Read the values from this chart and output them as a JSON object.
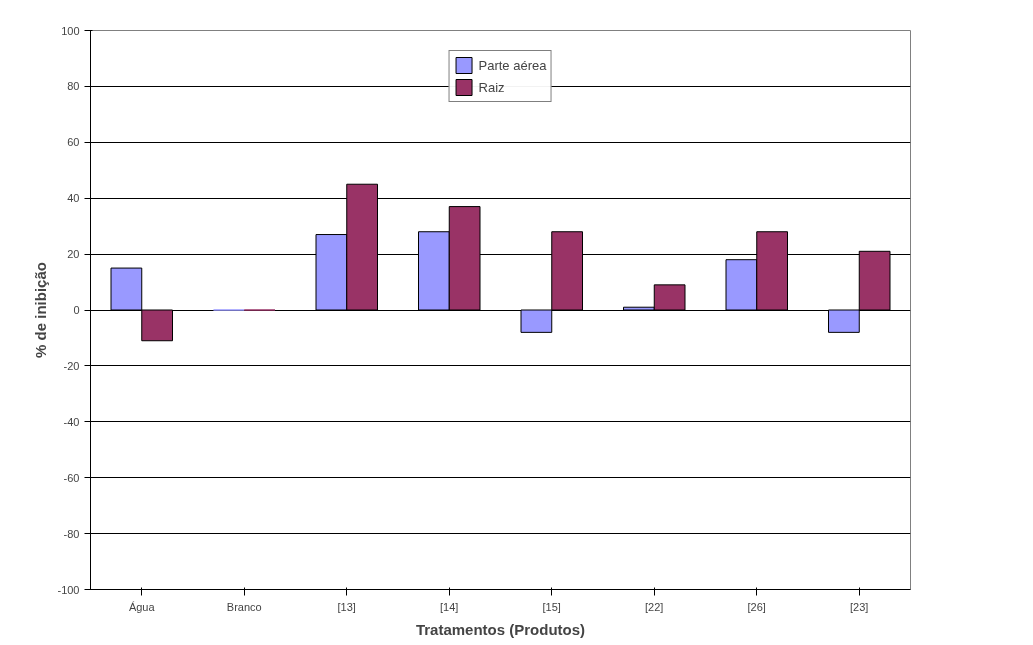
{
  "chart_data": {
    "type": "bar",
    "xlabel": "Tratamentos (Produtos)",
    "ylabel": "% de inibição",
    "categories": [
      "Água",
      "Branco",
      "[13]",
      "[14]",
      "[15]",
      "[22]",
      "[26]",
      "[23]"
    ],
    "series": [
      {
        "name": "Parte aérea",
        "color": "#9999ff",
        "values": [
          15,
          0,
          27,
          28,
          -8,
          1,
          18,
          -8
        ]
      },
      {
        "name": "Raiz",
        "color": "#993366",
        "values": [
          -11,
          0,
          45,
          37,
          28,
          9,
          28,
          21
        ]
      }
    ],
    "ylim": [
      -100,
      100
    ],
    "yticks": [
      -100,
      -80,
      -60,
      -40,
      -20,
      0,
      20,
      40,
      60,
      80,
      100
    ],
    "grid": "y",
    "legend": "top"
  }
}
